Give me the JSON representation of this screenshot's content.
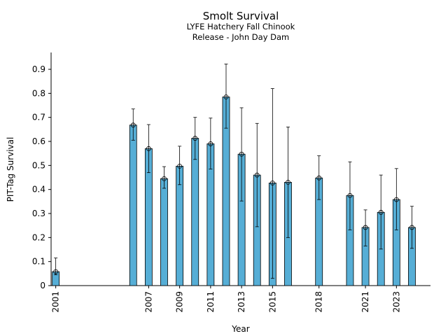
{
  "chart_data": {
    "type": "bar",
    "title": "Smolt Survival",
    "subtitle_lines": [
      "LYFE Hatchery Fall Chinook",
      "Release - John Day Dam"
    ],
    "xlabel": "Year",
    "ylabel": "PIT-Tag Survival",
    "ylim": [
      0,
      0.97
    ],
    "xlim": [
      2000.7,
      2025.2
    ],
    "yticks": [
      0,
      0.1,
      0.2,
      0.3,
      0.4,
      0.5,
      0.6,
      0.7,
      0.8,
      0.9
    ],
    "xtick_labels": [
      "2001",
      "2007",
      "2009",
      "2011",
      "2013",
      "2015",
      "2018",
      "2021",
      "2023"
    ],
    "bar_color": "#56aed6",
    "grid": false,
    "legend": "none",
    "points": [
      {
        "year": 2001,
        "value": 0.058,
        "lower": 0.045,
        "upper": 0.115
      },
      {
        "year": 2006,
        "value": 0.668,
        "lower": 0.605,
        "upper": 0.735
      },
      {
        "year": 2007,
        "value": 0.57,
        "lower": 0.47,
        "upper": 0.67
      },
      {
        "year": 2008,
        "value": 0.445,
        "lower": 0.405,
        "upper": 0.495
      },
      {
        "year": 2009,
        "value": 0.497,
        "lower": 0.42,
        "upper": 0.58
      },
      {
        "year": 2010,
        "value": 0.613,
        "lower": 0.525,
        "upper": 0.7
      },
      {
        "year": 2011,
        "value": 0.59,
        "lower": 0.485,
        "upper": 0.697
      },
      {
        "year": 2012,
        "value": 0.785,
        "lower": 0.655,
        "upper": 0.922
      },
      {
        "year": 2013,
        "value": 0.547,
        "lower": 0.352,
        "upper": 0.74
      },
      {
        "year": 2014,
        "value": 0.46,
        "lower": 0.245,
        "upper": 0.675
      },
      {
        "year": 2015,
        "value": 0.427,
        "lower": 0.03,
        "upper": 0.82
      },
      {
        "year": 2016,
        "value": 0.43,
        "lower": 0.2,
        "upper": 0.66
      },
      {
        "year": 2018,
        "value": 0.448,
        "lower": 0.358,
        "upper": 0.54
      },
      {
        "year": 2020,
        "value": 0.375,
        "lower": 0.232,
        "upper": 0.515
      },
      {
        "year": 2021,
        "value": 0.242,
        "lower": 0.165,
        "upper": 0.315
      },
      {
        "year": 2022,
        "value": 0.305,
        "lower": 0.152,
        "upper": 0.46
      },
      {
        "year": 2023,
        "value": 0.358,
        "lower": 0.232,
        "upper": 0.487
      },
      {
        "year": 2024,
        "value": 0.242,
        "lower": 0.155,
        "upper": 0.33
      }
    ]
  }
}
